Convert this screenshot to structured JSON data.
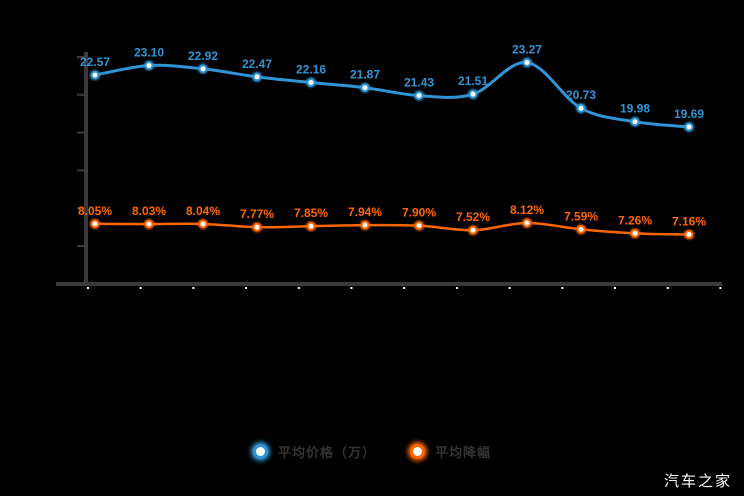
{
  "page": {
    "background_color": "#000000",
    "watermark": "汽车之家"
  },
  "legend": {
    "items": [
      {
        "label": "平均价格（万）",
        "color": "#2f95d6"
      },
      {
        "label": "平均降幅",
        "color": "#ff6600"
      }
    ],
    "position": "bottom-center"
  },
  "chart_data": {
    "type": "line",
    "title": "",
    "xlabel": "",
    "ylabel": "",
    "x_tick_labels_visible": false,
    "y_tick_labels_visible": false,
    "grid": false,
    "point_count": 12,
    "legend_position": "bottom",
    "series": [
      {
        "name": "平均价格（万）",
        "color": "#2f95d6",
        "unit": "万",
        "values": [
          22.57,
          23.1,
          22.92,
          22.47,
          22.16,
          21.87,
          21.43,
          21.51,
          23.27,
          20.73,
          19.98,
          19.69
        ],
        "labels": [
          "22.57",
          "23.10",
          "22.92",
          "22.47",
          "22.16",
          "21.87",
          "21.43",
          "21.51",
          "23.27",
          "20.73",
          "19.98",
          "19.69"
        ]
      },
      {
        "name": "平均降幅",
        "color": "#ff6600",
        "unit": "%",
        "values": [
          8.05,
          8.03,
          8.04,
          7.77,
          7.85,
          7.94,
          7.9,
          7.52,
          8.12,
          7.59,
          7.26,
          7.16
        ],
        "labels": [
          "8.05%",
          "8.03%",
          "8.04%",
          "7.77%",
          "7.85%",
          "7.94%",
          "7.90%",
          "7.52%",
          "8.12%",
          "7.59%",
          "7.26%",
          "7.16%"
        ]
      }
    ],
    "axis_color": "#3a3a3a",
    "x_tick_color": "#ffffff"
  }
}
